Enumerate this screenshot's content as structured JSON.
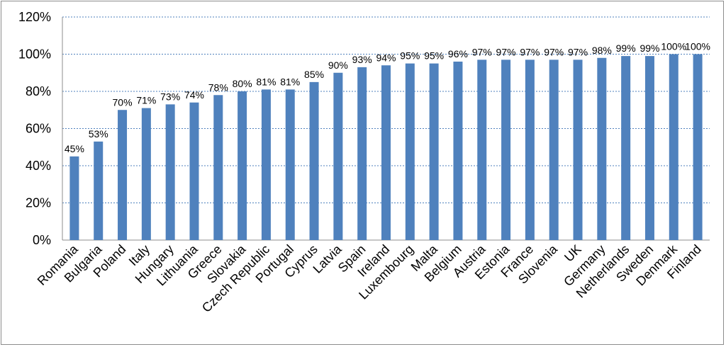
{
  "chart_data": {
    "type": "bar",
    "title": "",
    "xlabel": "",
    "ylabel": "",
    "ylim": [
      0,
      120
    ],
    "yticks": [
      0,
      20,
      40,
      60,
      80,
      100,
      120
    ],
    "ytick_labels": [
      "0%",
      "20%",
      "40%",
      "60%",
      "80%",
      "100%",
      "120%"
    ],
    "grid": true,
    "legend": "none",
    "bar_color": "#4f81bd",
    "grid_color": "#4f81bd",
    "categories": [
      "Romania",
      "Bulgaria",
      "Poland",
      "Italy",
      "Hungary",
      "Lithuania",
      "Greece",
      "Slovakia",
      "Czech Republic",
      "Portugal",
      "Cyprus",
      "Latvia",
      "Spain",
      "Ireland",
      "Luxembourg",
      "Malta",
      "Belgium",
      "Austria",
      "Estonia",
      "France",
      "Slovenia",
      "UK",
      "Germany",
      "Netherlands",
      "Sweden",
      "Denmark",
      "Finland"
    ],
    "values": [
      45,
      53,
      70,
      71,
      73,
      74,
      78,
      80,
      81,
      81,
      85,
      90,
      93,
      94,
      95,
      95,
      96,
      97,
      97,
      97,
      97,
      97,
      98,
      99,
      99,
      100,
      100
    ],
    "data_labels": [
      "45%",
      "53%",
      "70%",
      "71%",
      "73%",
      "74%",
      "78%",
      "80%",
      "81%",
      "81%",
      "85%",
      "90%",
      "93%",
      "94%",
      "95%",
      "95%",
      "96%",
      "97%",
      "97%",
      "97%",
      "97%",
      "97%",
      "98%",
      "99%",
      "99%",
      "100%",
      "100%"
    ]
  }
}
